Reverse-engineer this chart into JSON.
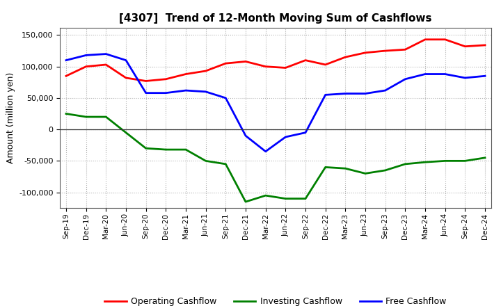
{
  "title": "[4307]  Trend of 12-Month Moving Sum of Cashflows",
  "ylabel": "Amount (million yen)",
  "background_color": "#ffffff",
  "grid_color": "#b0b0b0",
  "x_labels": [
    "Sep-19",
    "Dec-19",
    "Mar-20",
    "Jun-20",
    "Sep-20",
    "Dec-20",
    "Mar-21",
    "Jun-21",
    "Sep-21",
    "Dec-21",
    "Mar-22",
    "Jun-22",
    "Sep-22",
    "Dec-22",
    "Mar-23",
    "Jun-23",
    "Sep-23",
    "Dec-23",
    "Mar-24",
    "Jun-24",
    "Sep-24",
    "Dec-24"
  ],
  "operating_cashflow": [
    85000,
    100000,
    103000,
    82000,
    77000,
    80000,
    88000,
    93000,
    105000,
    108000,
    100000,
    98000,
    110000,
    103000,
    115000,
    122000,
    125000,
    127000,
    143000,
    143000,
    132000,
    134000
  ],
  "investing_cashflow": [
    25000,
    20000,
    20000,
    -5000,
    -30000,
    -32000,
    -32000,
    -50000,
    -55000,
    -115000,
    -105000,
    -110000,
    -110000,
    -60000,
    -62000,
    -70000,
    -65000,
    -55000,
    -52000,
    -50000,
    -50000,
    -45000
  ],
  "free_cashflow": [
    110000,
    118000,
    120000,
    110000,
    58000,
    58000,
    62000,
    60000,
    50000,
    -10000,
    -35000,
    -12000,
    -5000,
    55000,
    57000,
    57000,
    62000,
    80000,
    88000,
    88000,
    82000,
    85000
  ],
  "ylim": [
    -125000,
    162000
  ],
  "yticks": [
    -100000,
    -50000,
    0,
    50000,
    100000,
    150000
  ],
  "legend_entries": [
    "Operating Cashflow",
    "Investing Cashflow",
    "Free Cashflow"
  ],
  "line_colors": [
    "#ff0000",
    "#008000",
    "#0000ff"
  ],
  "line_width": 2.0
}
